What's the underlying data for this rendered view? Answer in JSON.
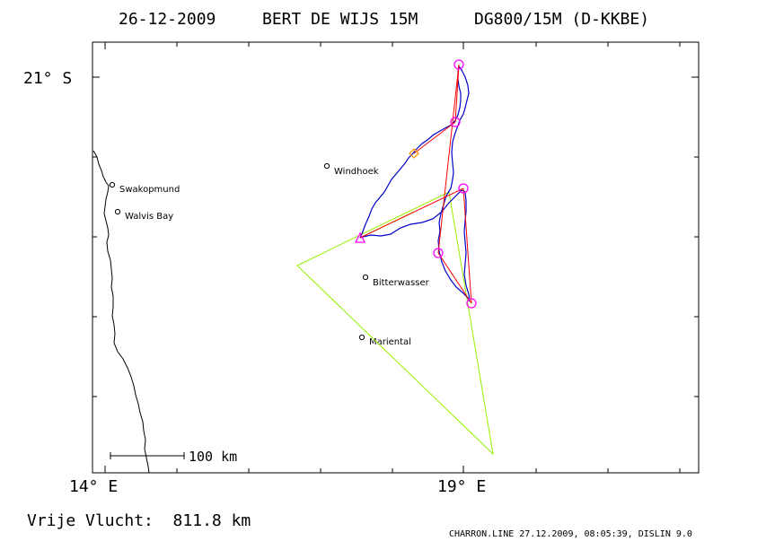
{
  "header": {
    "date": "26-12-2009",
    "pilot": "BERT DE WIJS 15M",
    "glider": "DG800/15M (D-KKBE)"
  },
  "axes": {
    "lat_label": "21° S",
    "lon_left_label": "14° E",
    "lon_right_label": "19° E"
  },
  "scale_bar": {
    "label": "100 km"
  },
  "places": [
    {
      "name": "Swakopmund"
    },
    {
      "name": "Walvis Bay"
    },
    {
      "name": "Windhoek"
    },
    {
      "name": "Bitterwasser"
    },
    {
      "name": "Mariental"
    }
  ],
  "footer": {
    "free_flight": "Vrije Vlucht:  811.8 km",
    "credit": "CHARRON.LINE 27.12.2009, 08:05:39, DISLIN 9.0"
  },
  "colors": {
    "frame": "#000000",
    "track": "#0000cc",
    "task_lines": "#ff0000",
    "triangle": "#99ee00",
    "turnpoints": "#ff00ff",
    "finish_marker": "#ff9900",
    "coast": "#000000"
  },
  "legend_icons": {
    "start": "triangle-icon",
    "turnpoint": "circle-icon",
    "finish": "diamond-icon"
  }
}
